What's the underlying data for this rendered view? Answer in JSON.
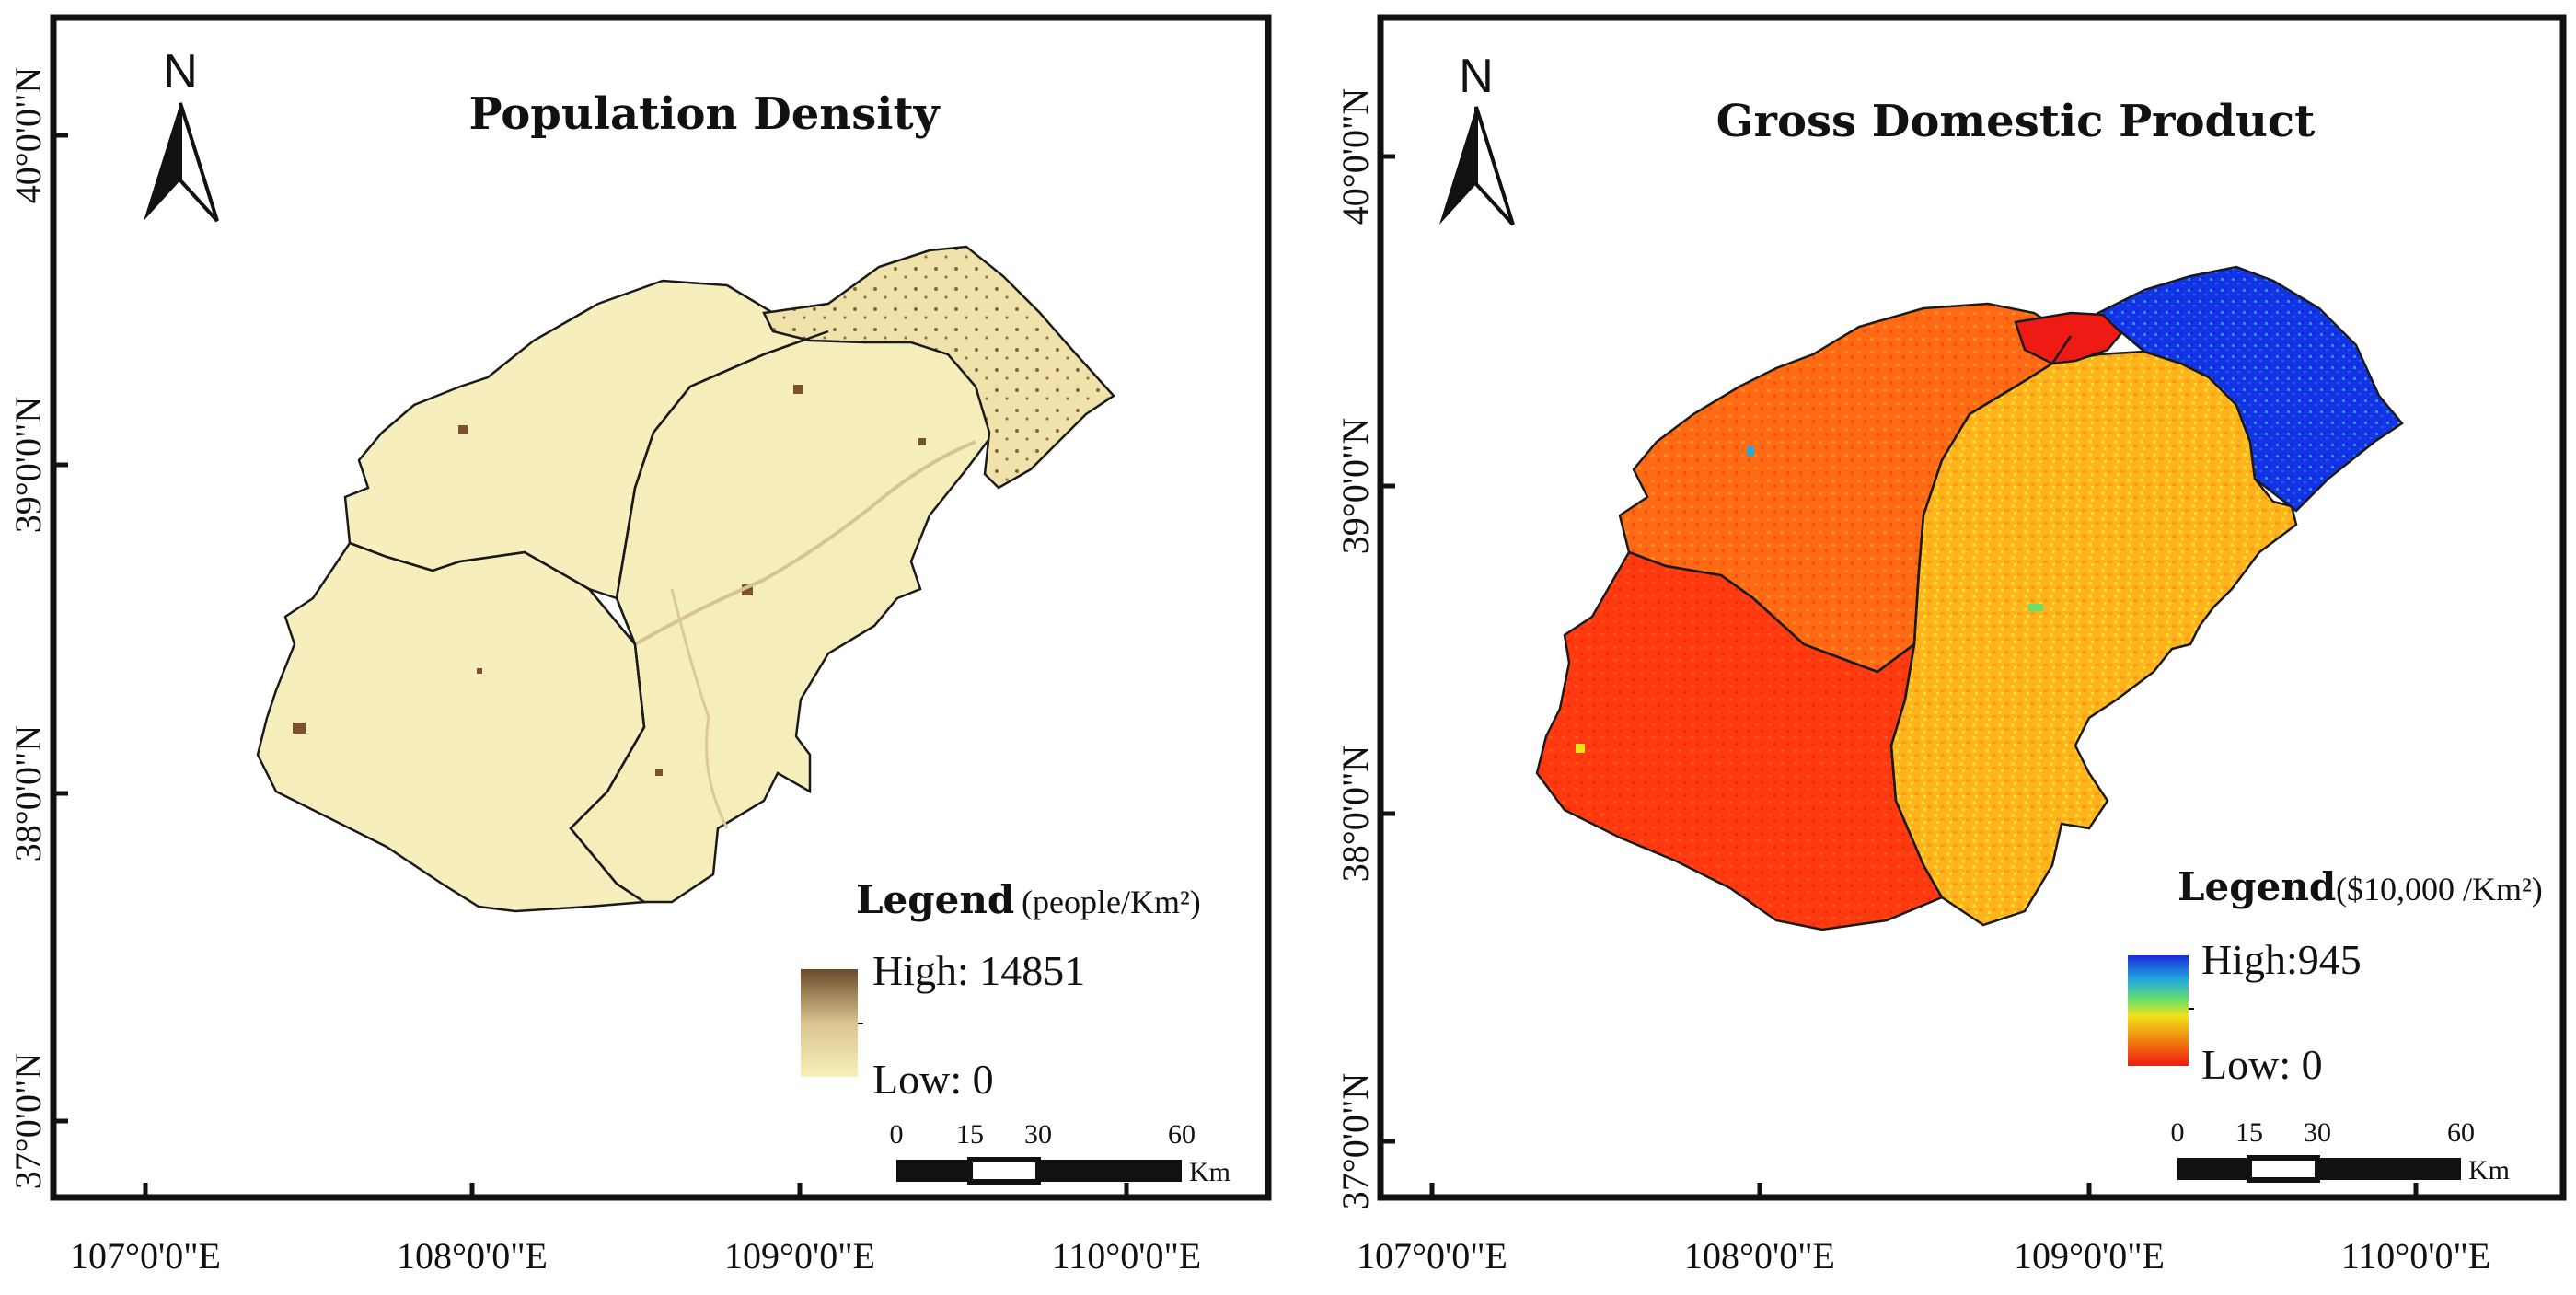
{
  "panels": [
    {
      "title": "Population Density",
      "north_label": "N",
      "lat_labels": [
        "40°0'0\"N",
        "39°0'0\"N",
        "38°0'0\"N",
        "37°0'0\"N"
      ],
      "lon_labels": [
        "107°0'0\"E",
        "108°0'0\"E",
        "109°0'0\"E",
        "110°0'0\"E"
      ],
      "legend": {
        "title": "Legend",
        "unit": "(people/Km²)",
        "high_label": "High: 14851",
        "low_label": "Low: 0",
        "colors": [
          "#f7f0b8",
          "#d9c48f",
          "#6b4a2b"
        ]
      },
      "scale_bar": {
        "ticks": [
          "0",
          "15",
          "30",
          "60"
        ],
        "unit": "Km"
      },
      "region_colors": [
        "#f6efbd",
        "#f5edba",
        "#efe2aa"
      ],
      "urban_color": "#7a5230"
    },
    {
      "title": "Gross Domestic Product",
      "north_label": "N",
      "lat_labels": [
        "40°0'0\"N",
        "39°0'0\"N",
        "38°0'0\"N",
        "37°0'0\"N"
      ],
      "lon_labels": [
        "107°0'0\"E",
        "108°0'0\"E",
        "109°0'0\"E",
        "110°0'0\"E"
      ],
      "legend": {
        "title": "Legend",
        "unit": "($10,000 /Km²)",
        "high_label": "High:945",
        "low_label": "Low: 0",
        "colors": [
          "#1a2bd9",
          "#22aadd",
          "#66e06a",
          "#f2e21a",
          "#f08a10",
          "#ee1a10"
        ]
      },
      "scale_bar": {
        "ticks": [
          "0",
          "15",
          "30",
          "60"
        ],
        "unit": "Km"
      },
      "region_colors": [
        "#ff3a10",
        "#ff6a14",
        "#ffb020",
        "#1530e0",
        "#ee1a14"
      ]
    }
  ]
}
